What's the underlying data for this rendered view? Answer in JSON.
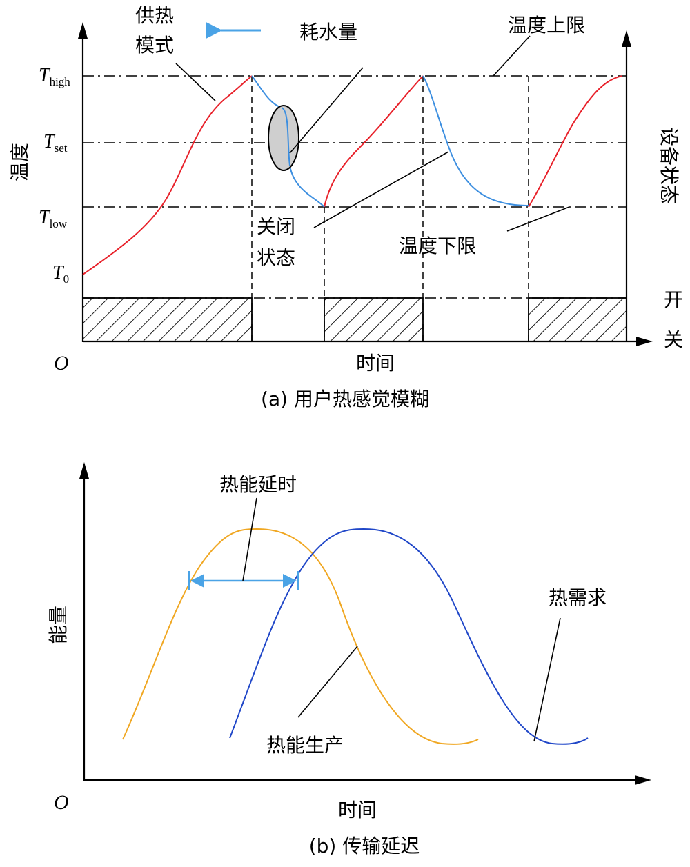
{
  "panel_a": {
    "caption": "(a) 用户热感觉模糊",
    "y_axis_label": "温度",
    "right_axis_label": "设备状态",
    "switch_label_1": "开",
    "switch_label_2": "关",
    "x_axis_label": "时间",
    "origin": "O",
    "y_ticks": [
      {
        "sym": "T",
        "sub": "high"
      },
      {
        "sym": "T",
        "sub": "set"
      },
      {
        "sym": "T",
        "sub": "low"
      },
      {
        "sym": "T",
        "sub": "0"
      }
    ],
    "annotations": {
      "heating_mode_line1": "供热",
      "heating_mode_line2": "模式",
      "water_usage": "耗水量",
      "upper_limit": "温度上限",
      "off_state_line1": "关闭",
      "off_state_line2": "状态",
      "lower_limit": "温度下限"
    },
    "colors": {
      "heating": "#e8212a",
      "cooling": "#3d8fe0",
      "arrow": "#4aa3e6"
    }
  },
  "panel_b": {
    "caption": "(b) 传输延迟",
    "y_axis_label": "能量",
    "x_axis_label": "时间",
    "origin": "O",
    "annotations": {
      "delay": "热能延时",
      "demand": "热需求",
      "production": "热能生产"
    },
    "colors": {
      "production": "#f0a722",
      "demand": "#2047c8",
      "delay_arrow": "#4aa3e6"
    }
  }
}
